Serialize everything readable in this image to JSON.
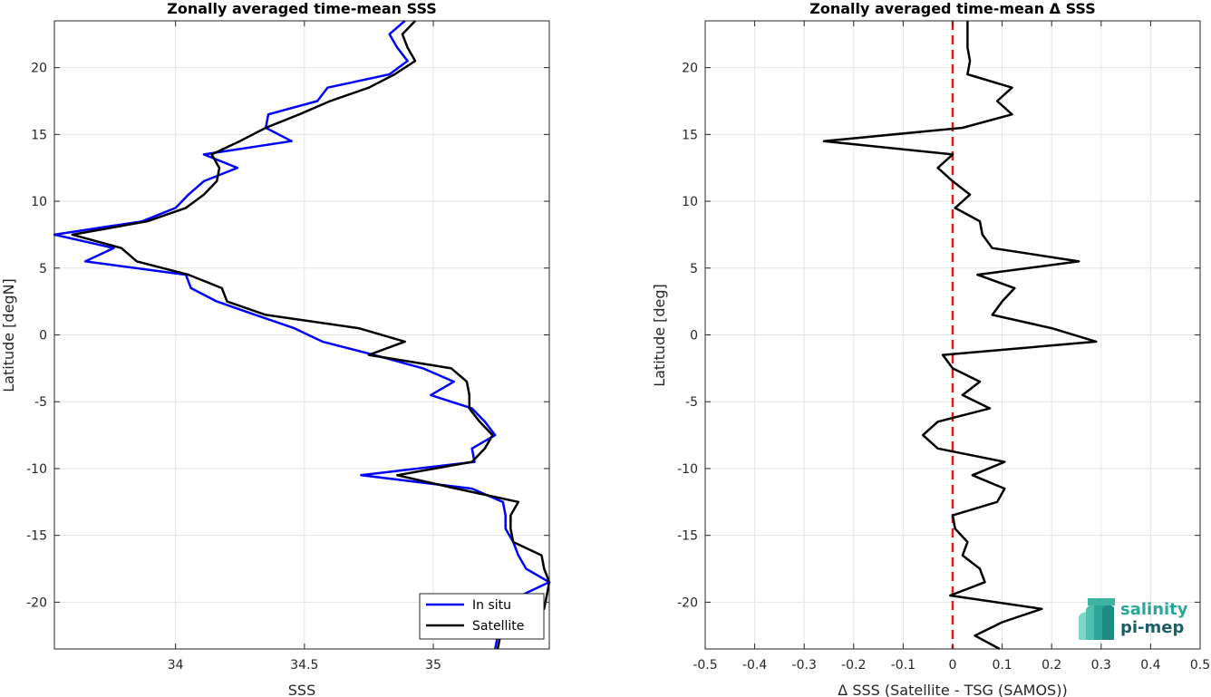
{
  "chart_data": [
    {
      "type": "line",
      "title": "Zonally averaged time-mean SSS",
      "xlabel": "SSS",
      "ylabel": "Latitude [degN]",
      "xlim": [
        33.53,
        35.45
      ],
      "ylim": [
        -23.5,
        23.5
      ],
      "xticks": [
        34,
        34.5,
        35
      ],
      "xticklabels": [
        "34",
        "34.5",
        "35"
      ],
      "yticks": [
        20,
        15,
        10,
        5,
        0,
        -5,
        -10,
        -15,
        -20
      ],
      "yticklabels": [
        "20",
        "15",
        "10",
        "5",
        "0",
        "-5",
        "-10",
        "-15",
        "-20"
      ],
      "grid": true,
      "legend": {
        "placement": "bottom-right",
        "entries": [
          "In situ",
          "Satellite"
        ]
      },
      "series": [
        {
          "name": "In situ",
          "color": "#0000ff",
          "y": [
            23.5,
            22.5,
            21.5,
            20.5,
            19.5,
            18.5,
            17.5,
            16.5,
            15.5,
            14.5,
            13.5,
            12.5,
            11.5,
            10.5,
            9.5,
            8.5,
            7.5,
            6.5,
            5.5,
            4.5,
            3.5,
            2.5,
            1.5,
            0.5,
            -0.5,
            -1.5,
            -2.5,
            -3.5,
            -4.5,
            -5.5,
            -6.5,
            -7.5,
            -8.5,
            -9.5,
            -10.5,
            -11.5,
            -12.5,
            -13.5,
            -14.5,
            -15.5,
            -16.5,
            -17.5,
            -18.5,
            -19.5,
            -20.5,
            -21.5,
            -22.5,
            -23.5
          ],
          "x": [
            34.89,
            34.83,
            34.86,
            34.9,
            34.83,
            34.59,
            34.55,
            34.36,
            34.35,
            34.45,
            34.11,
            34.24,
            34.11,
            34.05,
            34.0,
            33.87,
            33.53,
            33.76,
            33.65,
            34.04,
            34.06,
            34.16,
            34.31,
            34.46,
            34.57,
            34.77,
            34.96,
            35.08,
            34.99,
            35.15,
            35.2,
            35.24,
            35.15,
            35.16,
            34.72,
            35.15,
            35.27,
            35.28,
            35.28,
            35.31,
            35.33,
            35.36,
            35.45,
            35.34,
            35.3,
            35.27,
            35.25,
            35.24
          ]
        },
        {
          "name": "Satellite",
          "color": "#000000",
          "y": [
            23.5,
            22.5,
            21.5,
            20.5,
            19.5,
            18.5,
            17.5,
            16.5,
            15.5,
            14.5,
            13.5,
            12.5,
            11.5,
            10.5,
            9.5,
            8.5,
            7.5,
            6.5,
            5.5,
            4.5,
            3.5,
            2.5,
            1.5,
            0.5,
            -0.5,
            -1.5,
            -2.5,
            -3.5,
            -4.5,
            -5.5,
            -6.5,
            -7.5,
            -8.5,
            -9.5,
            -10.5,
            -11.5,
            -12.5,
            -13.5,
            -14.5,
            -15.5,
            -16.5,
            -17.5,
            -18.5,
            -19.5,
            -20.5,
            -21.5,
            -22.5,
            -23.5
          ],
          "x": [
            34.93,
            34.88,
            34.9,
            34.93,
            34.85,
            34.75,
            34.6,
            34.48,
            34.35,
            34.25,
            34.14,
            34.17,
            34.16,
            34.11,
            34.04,
            33.89,
            33.6,
            33.79,
            33.85,
            34.05,
            34.18,
            34.2,
            34.35,
            34.71,
            34.89,
            34.75,
            35.07,
            35.13,
            35.14,
            35.14,
            35.18,
            35.23,
            35.2,
            35.15,
            34.86,
            35.09,
            35.33,
            35.3,
            35.3,
            35.31,
            35.42,
            35.43,
            35.45,
            35.44,
            35.43,
            35.3,
            35.26,
            35.25
          ]
        }
      ]
    },
    {
      "type": "line",
      "title": "Zonally averaged time-mean Δ SSS",
      "xlabel": "Δ SSS (Satellite - TSG (SAMOS))",
      "ylabel": "Latitude [deg]",
      "xlim": [
        -0.5,
        0.5
      ],
      "ylim": [
        -23.5,
        23.5
      ],
      "xticks": [
        -0.5,
        -0.4,
        -0.3,
        -0.2,
        -0.1,
        0,
        0.1,
        0.2,
        0.3,
        0.4,
        0.5
      ],
      "xticklabels": [
        "-0.5",
        "-0.4",
        "-0.3",
        "-0.2",
        "-0.1",
        "0",
        "0.1",
        "0.2",
        "0.3",
        "0.4",
        "0.5"
      ],
      "yticks": [
        20,
        15,
        10,
        5,
        0,
        -5,
        -10,
        -15,
        -20
      ],
      "yticklabels": [
        "20",
        "15",
        "10",
        "5",
        "0",
        "-5",
        "-10",
        "-15",
        "-20"
      ],
      "grid": true,
      "reference_line": {
        "x": 0,
        "color": "#e21a1a",
        "style": "dashed"
      },
      "series": [
        {
          "color": "#000000",
          "y": [
            23.5,
            21.5,
            20.5,
            19.5,
            18.5,
            17.5,
            16.5,
            15.5,
            14.5,
            13.5,
            12.5,
            11.5,
            10.5,
            9.5,
            8.5,
            7.5,
            6.5,
            5.5,
            4.5,
            3.5,
            2.5,
            1.5,
            0.5,
            -0.5,
            -1.5,
            -2.5,
            -3.5,
            -4.5,
            -5.5,
            -6.5,
            -7.5,
            -8.5,
            -9.5,
            -10.5,
            -11.5,
            -12.5,
            -13.5,
            -14.5,
            -15.5,
            -16.5,
            -17.5,
            -18.5,
            -19.5,
            -20.5,
            -21.5,
            -22.5,
            -23.5
          ],
          "x": [
            0.03,
            0.03,
            0.035,
            0.03,
            0.12,
            0.09,
            0.12,
            0.02,
            -0.26,
            0.0,
            -0.03,
            0.0,
            0.035,
            0.005,
            0.055,
            0.06,
            0.08,
            0.255,
            0.05,
            0.125,
            0.1,
            0.08,
            0.2,
            0.29,
            -0.02,
            0.0,
            0.055,
            0.02,
            0.075,
            -0.03,
            -0.06,
            -0.03,
            0.105,
            0.04,
            0.105,
            0.09,
            0.0,
            0.005,
            0.03,
            0.02,
            0.055,
            0.065,
            -0.005,
            0.18,
            0.1,
            0.045,
            0.095
          ]
        }
      ]
    }
  ],
  "logo": {
    "line1": "salinity",
    "line2": "pi-mep"
  }
}
